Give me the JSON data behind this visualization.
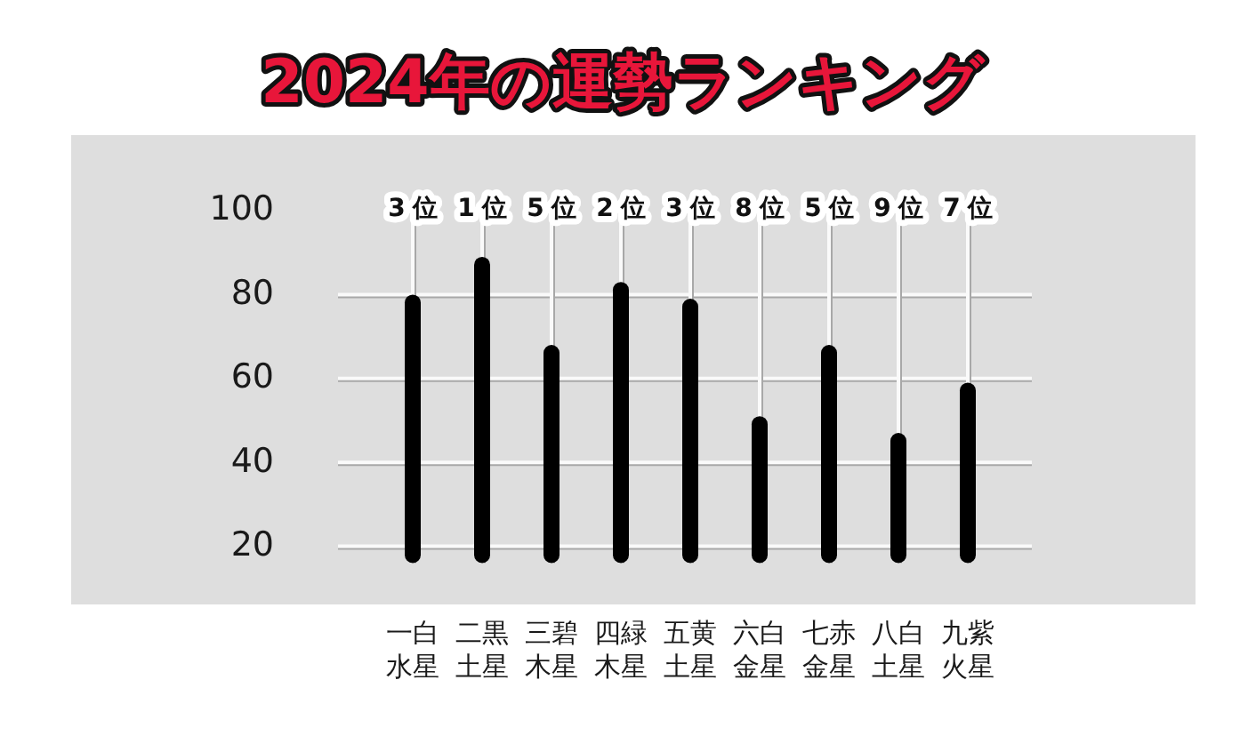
{
  "chart_data": {
    "type": "bar",
    "title": "2024年の運勢ランキング",
    "categories": [
      "一白水星",
      "二黒土星",
      "三碧木星",
      "四緑木星",
      "五黄土星",
      "六白金星",
      "七赤金星",
      "八白土星",
      "九紫火星"
    ],
    "values": [
      80,
      89,
      68,
      83,
      79,
      51,
      68,
      47,
      59
    ],
    "annotations": [
      "3位",
      "1位",
      "5位",
      "2位",
      "3位",
      "8位",
      "5位",
      "9位",
      "7位"
    ],
    "color": "#000000",
    "ylim": [
      16,
      100
    ],
    "yticks": [
      20,
      40,
      60,
      80,
      100
    ],
    "grid": true
  }
}
